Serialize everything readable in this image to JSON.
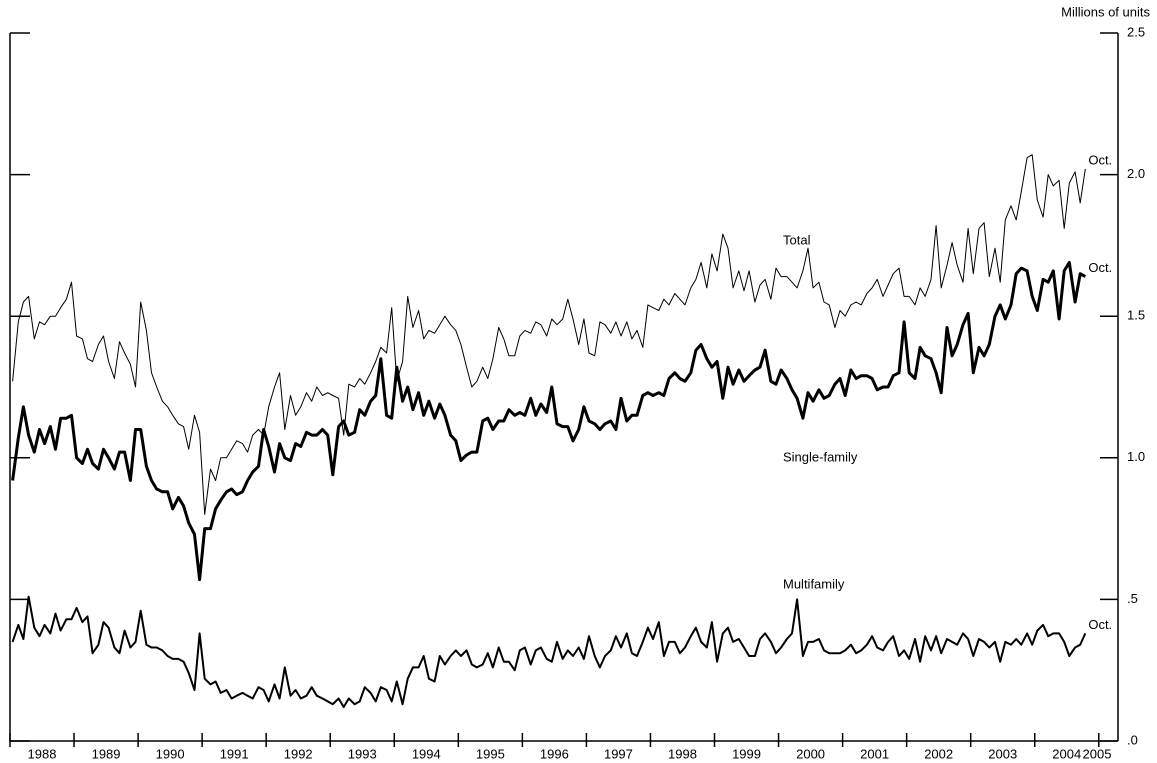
{
  "chart_data": {
    "type": "line",
    "y_axis_label": "Millions of units",
    "xlim": [
      1988,
      2005.3
    ],
    "xticks": [
      1988,
      1989,
      1990,
      1991,
      1992,
      1993,
      1994,
      1995,
      1996,
      1997,
      1998,
      1999,
      2000,
      2001,
      2002,
      2003,
      2004,
      2005
    ],
    "ylim": [
      0,
      2.5
    ],
    "yticks": [
      {
        "value": 0,
        "label": ".0"
      },
      {
        "value": 0.5,
        "label": ".5"
      },
      {
        "value": 1,
        "label": "1.0"
      },
      1.5,
      {
        "value": 2,
        "label": "2.0"
      },
      2.5
    ],
    "grid": false,
    "x": [
      1988.04,
      1988.13,
      1988.21,
      1988.29,
      1988.38,
      1988.46,
      1988.54,
      1988.63,
      1988.71,
      1988.79,
      1988.88,
      1988.96,
      1989.04,
      1989.13,
      1989.21,
      1989.29,
      1989.38,
      1989.46,
      1989.54,
      1989.63,
      1989.71,
      1989.79,
      1989.88,
      1989.96,
      1990.04,
      1990.13,
      1990.21,
      1990.29,
      1990.38,
      1990.46,
      1990.54,
      1990.63,
      1990.71,
      1990.79,
      1990.88,
      1990.96,
      1991.04,
      1991.13,
      1991.21,
      1991.29,
      1991.38,
      1991.46,
      1991.54,
      1991.63,
      1991.71,
      1991.79,
      1991.88,
      1991.96,
      1992.04,
      1992.13,
      1992.21,
      1992.29,
      1992.38,
      1992.46,
      1992.54,
      1992.63,
      1992.71,
      1992.79,
      1992.88,
      1992.96,
      1993.04,
      1993.13,
      1993.21,
      1993.29,
      1993.38,
      1993.46,
      1993.54,
      1993.63,
      1993.71,
      1993.79,
      1993.88,
      1993.96,
      1994.04,
      1994.13,
      1994.21,
      1994.29,
      1994.38,
      1994.46,
      1994.54,
      1994.63,
      1994.71,
      1994.79,
      1994.88,
      1994.96,
      1995.04,
      1995.13,
      1995.21,
      1995.29,
      1995.38,
      1995.46,
      1995.54,
      1995.63,
      1995.71,
      1995.79,
      1995.88,
      1995.96,
      1996.04,
      1996.13,
      1996.21,
      1996.29,
      1996.38,
      1996.46,
      1996.54,
      1996.63,
      1996.71,
      1996.79,
      1996.88,
      1996.96,
      1997.04,
      1997.13,
      1997.21,
      1997.29,
      1997.38,
      1997.46,
      1997.54,
      1997.63,
      1997.71,
      1997.79,
      1997.88,
      1997.96,
      1998.04,
      1998.13,
      1998.21,
      1998.29,
      1998.38,
      1998.46,
      1998.54,
      1998.63,
      1998.71,
      1998.79,
      1998.88,
      1998.96,
      1999.04,
      1999.13,
      1999.21,
      1999.29,
      1999.38,
      1999.46,
      1999.54,
      1999.63,
      1999.71,
      1999.79,
      1999.88,
      1999.96,
      2000.04,
      2000.13,
      2000.21,
      2000.29,
      2000.38,
      2000.46,
      2000.54,
      2000.63,
      2000.71,
      2000.79,
      2000.88,
      2000.96,
      2001.04,
      2001.13,
      2001.21,
      2001.29,
      2001.38,
      2001.46,
      2001.54,
      2001.63,
      2001.71,
      2001.79,
      2001.88,
      2001.96,
      2002.04,
      2002.13,
      2002.21,
      2002.29,
      2002.38,
      2002.46,
      2002.54,
      2002.63,
      2002.71,
      2002.79,
      2002.88,
      2002.96,
      2003.04,
      2003.13,
      2003.21,
      2003.29,
      2003.38,
      2003.46,
      2003.54,
      2003.63,
      2003.71,
      2003.79,
      2003.88,
      2003.96,
      2004.04,
      2004.13,
      2004.21,
      2004.29,
      2004.38,
      2004.46,
      2004.54,
      2004.63,
      2004.71,
      2004.79
    ],
    "series": [
      {
        "name": "Total",
        "color": "#000000",
        "end_label": "Oct.",
        "values": [
          1.27,
          1.48,
          1.55,
          1.57,
          1.42,
          1.48,
          1.47,
          1.5,
          1.5,
          1.53,
          1.56,
          1.62,
          1.43,
          1.42,
          1.35,
          1.34,
          1.4,
          1.43,
          1.34,
          1.28,
          1.41,
          1.37,
          1.33,
          1.25,
          1.55,
          1.45,
          1.3,
          1.25,
          1.2,
          1.18,
          1.15,
          1.12,
          1.11,
          1.03,
          1.15,
          1.09,
          0.8,
          0.96,
          0.92,
          1.0,
          1.0,
          1.03,
          1.06,
          1.05,
          1.02,
          1.08,
          1.1,
          1.08,
          1.18,
          1.25,
          1.3,
          1.1,
          1.22,
          1.15,
          1.18,
          1.23,
          1.2,
          1.25,
          1.22,
          1.23,
          1.22,
          1.21,
          1.08,
          1.26,
          1.25,
          1.28,
          1.26,
          1.3,
          1.34,
          1.39,
          1.37,
          1.53,
          1.27,
          1.34,
          1.57,
          1.46,
          1.52,
          1.42,
          1.45,
          1.44,
          1.47,
          1.5,
          1.47,
          1.45,
          1.4,
          1.32,
          1.25,
          1.27,
          1.32,
          1.28,
          1.35,
          1.46,
          1.42,
          1.36,
          1.36,
          1.43,
          1.45,
          1.44,
          1.48,
          1.47,
          1.43,
          1.49,
          1.47,
          1.49,
          1.56,
          1.49,
          1.4,
          1.49,
          1.37,
          1.36,
          1.48,
          1.47,
          1.44,
          1.48,
          1.43,
          1.48,
          1.42,
          1.45,
          1.39,
          1.54,
          1.53,
          1.52,
          1.56,
          1.54,
          1.58,
          1.56,
          1.54,
          1.6,
          1.63,
          1.69,
          1.6,
          1.72,
          1.66,
          1.79,
          1.74,
          1.6,
          1.66,
          1.59,
          1.66,
          1.55,
          1.61,
          1.63,
          1.56,
          1.67,
          1.64,
          1.64,
          1.62,
          1.6,
          1.66,
          1.74,
          1.6,
          1.62,
          1.55,
          1.54,
          1.46,
          1.52,
          1.5,
          1.54,
          1.55,
          1.54,
          1.58,
          1.6,
          1.63,
          1.57,
          1.61,
          1.65,
          1.67,
          1.57,
          1.57,
          1.54,
          1.6,
          1.57,
          1.63,
          1.82,
          1.6,
          1.68,
          1.76,
          1.68,
          1.62,
          1.81,
          1.65,
          1.81,
          1.83,
          1.64,
          1.74,
          1.62,
          1.84,
          1.89,
          1.84,
          1.94,
          2.06,
          2.07,
          1.91,
          1.85,
          2.0,
          1.96,
          1.98,
          1.81,
          1.97,
          2.01,
          1.9,
          2.02
        ]
      },
      {
        "name": "Single-family",
        "color": "#000000",
        "end_label": "Oct.",
        "values": [
          0.92,
          1.07,
          1.18,
          1.08,
          1.02,
          1.1,
          1.05,
          1.11,
          1.03,
          1.14,
          1.14,
          1.15,
          1.0,
          0.98,
          1.03,
          0.98,
          0.96,
          1.03,
          1.0,
          0.96,
          1.02,
          1.02,
          0.92,
          1.1,
          1.1,
          0.97,
          0.92,
          0.89,
          0.88,
          0.88,
          0.82,
          0.86,
          0.83,
          0.77,
          0.73,
          0.57,
          0.75,
          0.75,
          0.82,
          0.85,
          0.88,
          0.89,
          0.87,
          0.88,
          0.92,
          0.95,
          0.97,
          1.1,
          1.04,
          0.95,
          1.05,
          1.0,
          0.99,
          1.05,
          1.04,
          1.09,
          1.08,
          1.08,
          1.1,
          1.08,
          0.94,
          1.11,
          1.13,
          1.08,
          1.09,
          1.17,
          1.15,
          1.2,
          1.22,
          1.35,
          1.15,
          1.14,
          1.32,
          1.2,
          1.25,
          1.17,
          1.23,
          1.15,
          1.2,
          1.14,
          1.19,
          1.15,
          1.08,
          1.06,
          0.99,
          1.01,
          1.02,
          1.02,
          1.13,
          1.14,
          1.1,
          1.13,
          1.13,
          1.17,
          1.15,
          1.16,
          1.15,
          1.21,
          1.15,
          1.19,
          1.16,
          1.25,
          1.12,
          1.11,
          1.11,
          1.06,
          1.1,
          1.18,
          1.13,
          1.12,
          1.1,
          1.12,
          1.13,
          1.1,
          1.21,
          1.13,
          1.15,
          1.15,
          1.22,
          1.23,
          1.22,
          1.23,
          1.22,
          1.28,
          1.3,
          1.28,
          1.27,
          1.3,
          1.38,
          1.4,
          1.35,
          1.32,
          1.34,
          1.21,
          1.32,
          1.26,
          1.31,
          1.27,
          1.29,
          1.31,
          1.32,
          1.38,
          1.27,
          1.26,
          1.31,
          1.28,
          1.24,
          1.21,
          1.14,
          1.23,
          1.2,
          1.24,
          1.21,
          1.22,
          1.26,
          1.28,
          1.22,
          1.31,
          1.28,
          1.29,
          1.29,
          1.28,
          1.24,
          1.25,
          1.25,
          1.29,
          1.3,
          1.48,
          1.3,
          1.28,
          1.39,
          1.36,
          1.35,
          1.3,
          1.23,
          1.46,
          1.36,
          1.4,
          1.47,
          1.51,
          1.3,
          1.39,
          1.36,
          1.4,
          1.5,
          1.54,
          1.49,
          1.54,
          1.65,
          1.67,
          1.66,
          1.57,
          1.52,
          1.63,
          1.62,
          1.66,
          1.49,
          1.66,
          1.69,
          1.55,
          1.65,
          1.64
        ]
      },
      {
        "name": "Multifamily",
        "color": "#000000",
        "end_label": "Oct.",
        "values": [
          0.35,
          0.41,
          0.36,
          0.51,
          0.4,
          0.37,
          0.41,
          0.38,
          0.45,
          0.39,
          0.43,
          0.43,
          0.47,
          0.42,
          0.44,
          0.31,
          0.34,
          0.42,
          0.4,
          0.33,
          0.31,
          0.39,
          0.33,
          0.35,
          0.46,
          0.34,
          0.33,
          0.33,
          0.32,
          0.3,
          0.29,
          0.29,
          0.28,
          0.24,
          0.18,
          0.38,
          0.22,
          0.2,
          0.21,
          0.17,
          0.18,
          0.15,
          0.16,
          0.17,
          0.16,
          0.15,
          0.19,
          0.18,
          0.14,
          0.2,
          0.15,
          0.26,
          0.16,
          0.18,
          0.15,
          0.16,
          0.19,
          0.16,
          0.15,
          0.14,
          0.13,
          0.15,
          0.12,
          0.15,
          0.13,
          0.14,
          0.19,
          0.17,
          0.14,
          0.19,
          0.18,
          0.14,
          0.21,
          0.13,
          0.22,
          0.26,
          0.26,
          0.3,
          0.22,
          0.21,
          0.3,
          0.27,
          0.3,
          0.32,
          0.3,
          0.32,
          0.27,
          0.26,
          0.27,
          0.31,
          0.26,
          0.33,
          0.28,
          0.28,
          0.25,
          0.32,
          0.33,
          0.27,
          0.32,
          0.33,
          0.29,
          0.28,
          0.35,
          0.29,
          0.32,
          0.3,
          0.33,
          0.29,
          0.37,
          0.3,
          0.26,
          0.3,
          0.32,
          0.37,
          0.33,
          0.38,
          0.31,
          0.3,
          0.35,
          0.4,
          0.36,
          0.42,
          0.3,
          0.35,
          0.35,
          0.31,
          0.33,
          0.37,
          0.4,
          0.35,
          0.33,
          0.42,
          0.28,
          0.38,
          0.4,
          0.35,
          0.36,
          0.33,
          0.3,
          0.3,
          0.36,
          0.38,
          0.35,
          0.31,
          0.33,
          0.36,
          0.38,
          0.5,
          0.3,
          0.35,
          0.35,
          0.36,
          0.32,
          0.31,
          0.31,
          0.31,
          0.32,
          0.34,
          0.31,
          0.32,
          0.34,
          0.37,
          0.33,
          0.32,
          0.35,
          0.37,
          0.3,
          0.32,
          0.29,
          0.36,
          0.28,
          0.37,
          0.32,
          0.37,
          0.31,
          0.36,
          0.35,
          0.34,
          0.38,
          0.36,
          0.3,
          0.36,
          0.35,
          0.33,
          0.35,
          0.28,
          0.35,
          0.34,
          0.36,
          0.34,
          0.38,
          0.34,
          0.39,
          0.41,
          0.37,
          0.38,
          0.38,
          0.35,
          0.3,
          0.33,
          0.34,
          0.38
        ]
      }
    ]
  }
}
